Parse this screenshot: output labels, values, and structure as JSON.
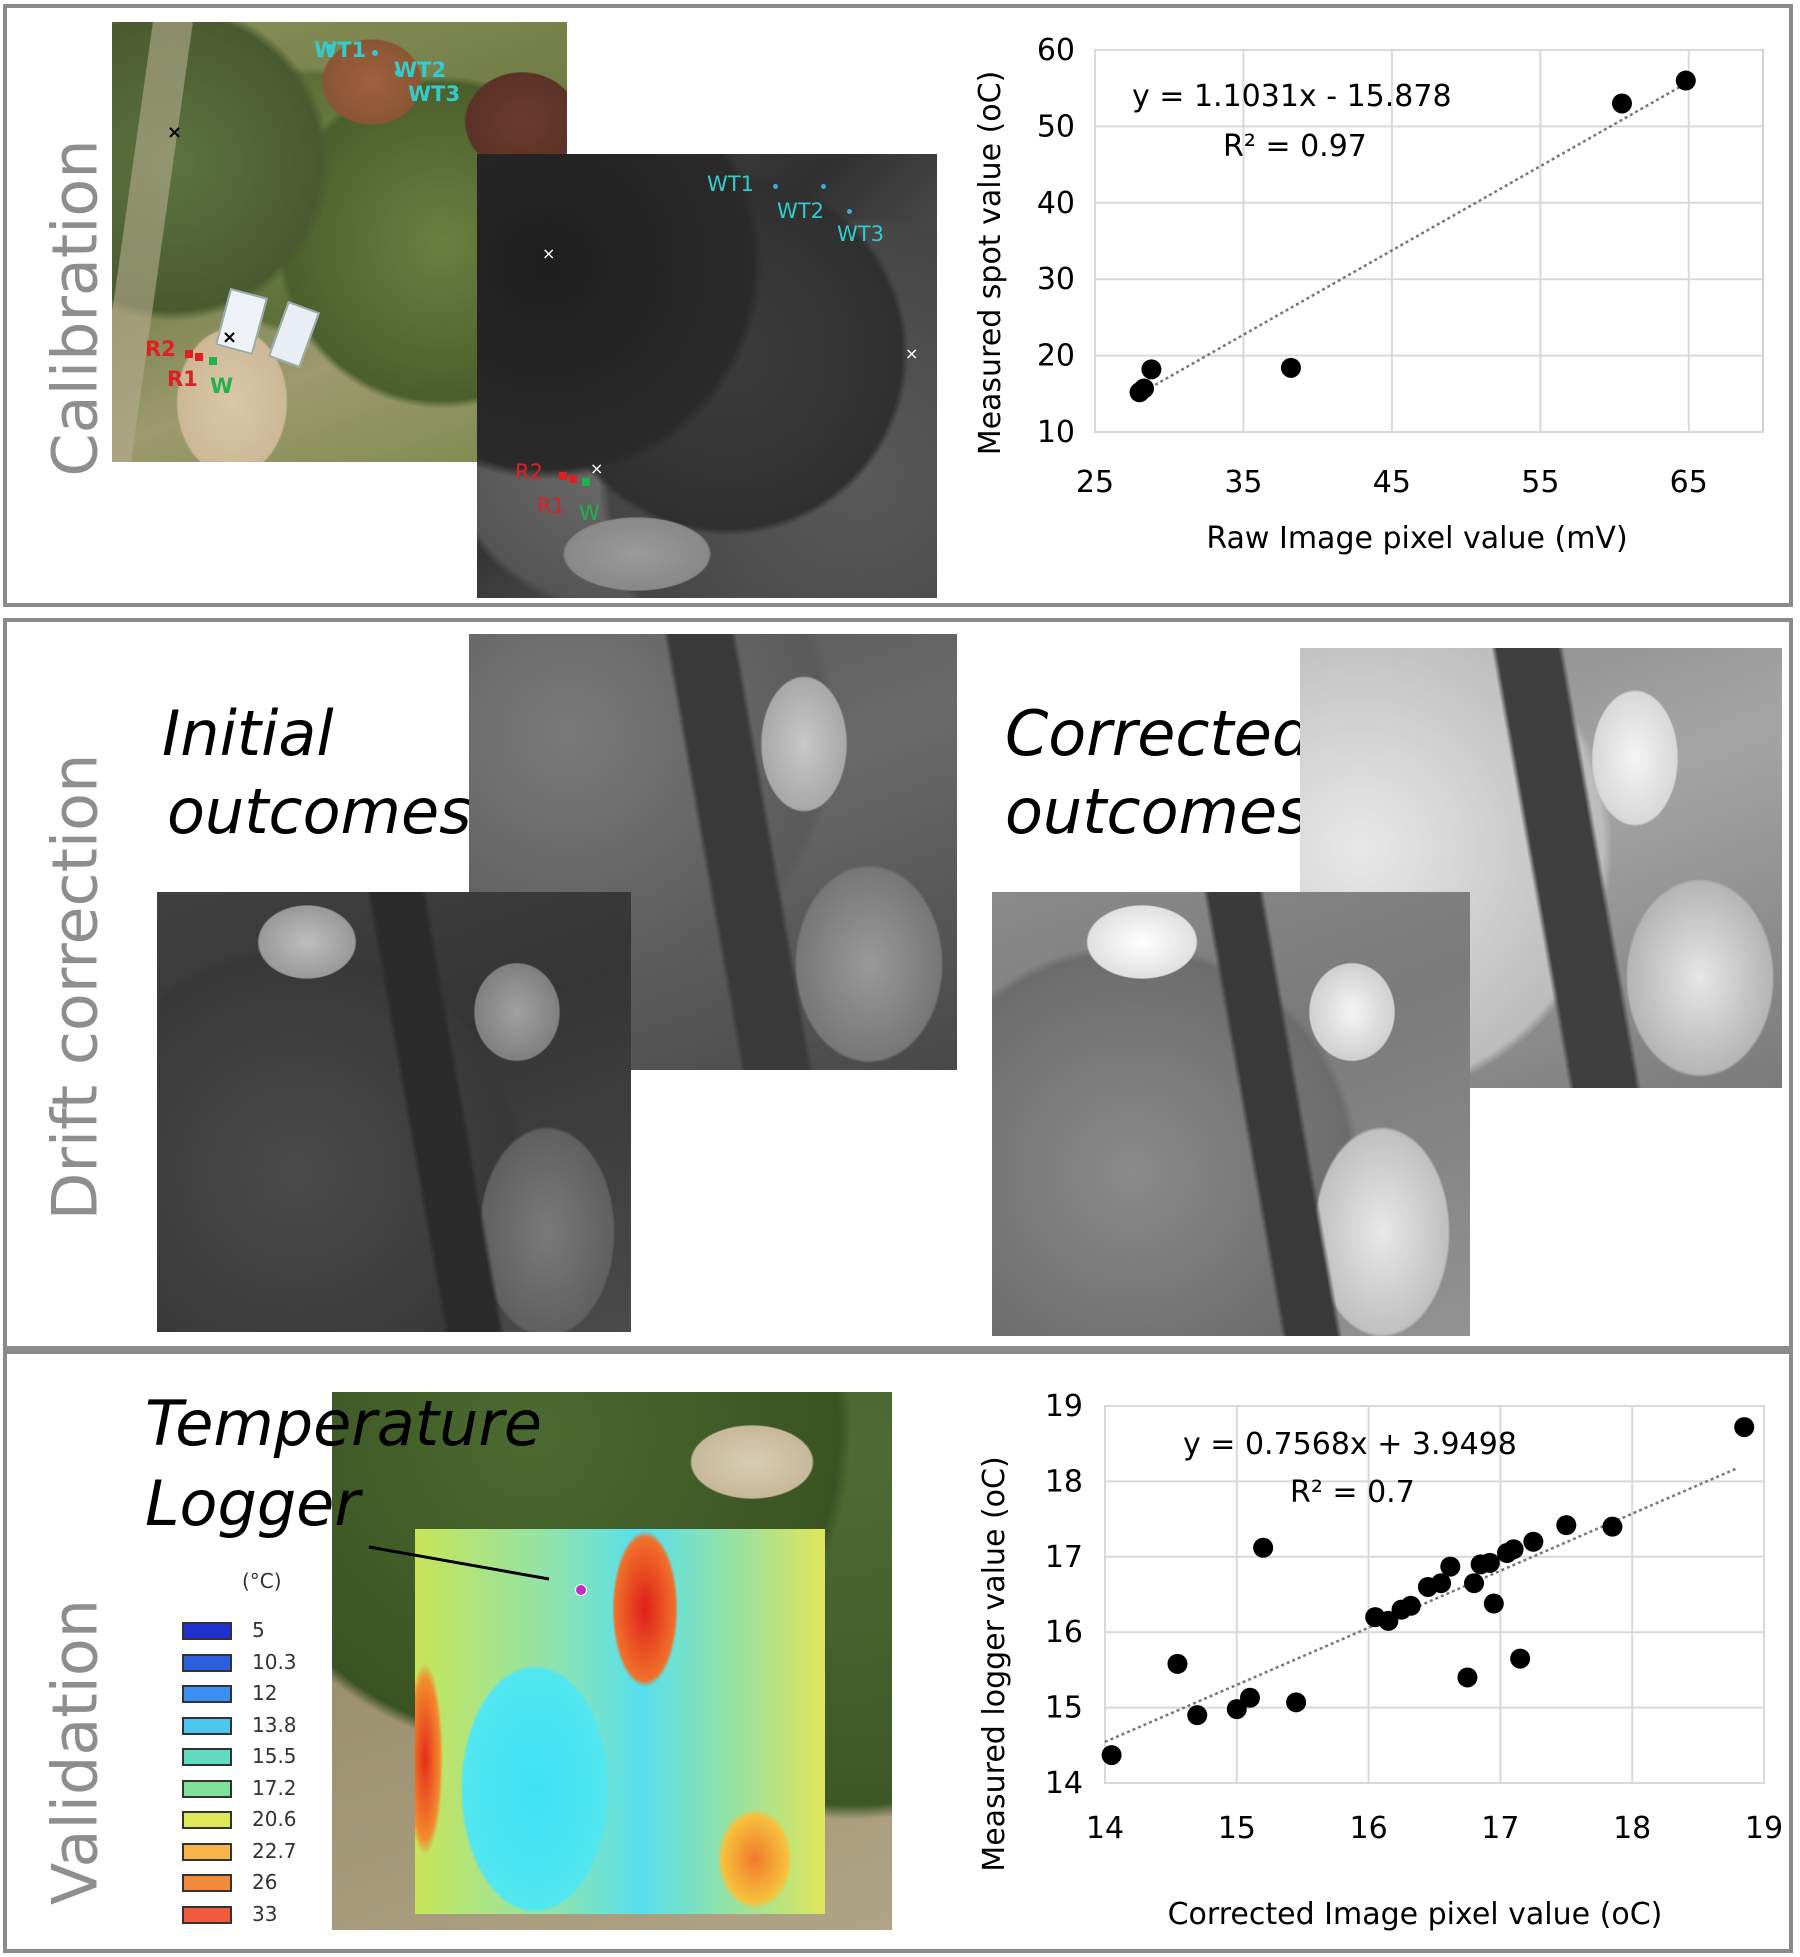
{
  "panels": {
    "calibration": {
      "label": "Calibration",
      "rgb_markers": {
        "wt1": "WT1",
        "wt2": "WT2",
        "wt3": "WT3",
        "r2": "R2",
        "r1": "R1",
        "w": "W"
      },
      "thermal_markers": {
        "wt1": "WT1",
        "wt2": "WT2",
        "wt3": "WT3",
        "r2": "R2",
        "r1": "R1",
        "w": "W"
      },
      "chart": {
        "equation": "y = 1.1031x - 15.878",
        "r2": "R² = 0.97",
        "xlabel": "Raw Image pixel value (mV)",
        "ylabel": "Measured spot value (oC)"
      }
    },
    "drift": {
      "label": "Drift correction",
      "initial_line1": "Initial",
      "initial_line2": "outcomes",
      "corrected_line1": "Corrected",
      "corrected_line2": "outcomes"
    },
    "validation": {
      "label": "Validation",
      "logger_line1": "Temperature",
      "logger_line2": "Logger",
      "legend_title": "(°C)",
      "legend": [
        {
          "label": "5",
          "color": "#1f2fd0"
        },
        {
          "label": "10.3",
          "color": "#2b5fe0"
        },
        {
          "label": "12",
          "color": "#3a8ff0"
        },
        {
          "label": "13.8",
          "color": "#4ec6f0"
        },
        {
          "label": "15.5",
          "color": "#5fdcc0"
        },
        {
          "label": "17.2",
          "color": "#7fe09a"
        },
        {
          "label": "20.6",
          "color": "#dfe85a"
        },
        {
          "label": "22.7",
          "color": "#f7b44a"
        },
        {
          "label": "26",
          "color": "#f38a3a"
        },
        {
          "label": "33",
          "color": "#ee5a3a"
        }
      ],
      "chart": {
        "equation": "y = 0.7568x + 3.9498",
        "r2": "R² = 0.7",
        "xlabel": "Corrected Image pixel value (oC)",
        "ylabel": "Measured logger value (oC)"
      }
    }
  },
  "chart_data": [
    {
      "type": "scatter",
      "title": "",
      "xlabel": "Raw Image pixel value (mV)",
      "ylabel": "Measured spot value (oC)",
      "xlim": [
        25,
        70
      ],
      "ylim": [
        10,
        60
      ],
      "xticks": [
        25,
        35,
        45,
        55,
        65
      ],
      "yticks": [
        10,
        20,
        30,
        40,
        50,
        60
      ],
      "grid": true,
      "trendline": {
        "slope": 1.1031,
        "intercept": -15.878,
        "x_range": [
          28,
          65
        ]
      },
      "points": [
        [
          28.0,
          15.2
        ],
        [
          28.3,
          15.7
        ],
        [
          28.8,
          18.2
        ],
        [
          38.2,
          18.4
        ],
        [
          60.5,
          53.0
        ],
        [
          64.8,
          56.0
        ]
      ]
    },
    {
      "type": "scatter",
      "title": "",
      "xlabel": "Corrected Image pixel value (oC)",
      "ylabel": "Measured logger value (oC)",
      "xlim": [
        14,
        19
      ],
      "ylim": [
        14,
        19
      ],
      "xticks": [
        14,
        15,
        16,
        17,
        18,
        19
      ],
      "yticks": [
        14,
        15,
        16,
        17,
        18,
        19
      ],
      "grid": true,
      "trendline": {
        "slope": 0.7568,
        "intercept": 3.9498,
        "x_range": [
          14,
          18.8
        ]
      },
      "points": [
        [
          14.05,
          14.37
        ],
        [
          14.55,
          15.58
        ],
        [
          14.7,
          14.9
        ],
        [
          15.0,
          14.98
        ],
        [
          15.1,
          15.13
        ],
        [
          15.45,
          15.07
        ],
        [
          15.2,
          17.12
        ],
        [
          16.05,
          16.2
        ],
        [
          16.15,
          16.15
        ],
        [
          16.25,
          16.3
        ],
        [
          16.32,
          16.35
        ],
        [
          16.45,
          16.6
        ],
        [
          16.55,
          16.65
        ],
        [
          16.62,
          16.87
        ],
        [
          16.75,
          15.4
        ],
        [
          16.8,
          16.65
        ],
        [
          16.85,
          16.9
        ],
        [
          16.92,
          16.92
        ],
        [
          16.95,
          16.38
        ],
        [
          17.05,
          17.05
        ],
        [
          17.1,
          17.1
        ],
        [
          17.15,
          15.65
        ],
        [
          17.25,
          17.2
        ],
        [
          17.5,
          17.42
        ],
        [
          17.85,
          17.4
        ],
        [
          18.85,
          18.72
        ]
      ]
    }
  ]
}
